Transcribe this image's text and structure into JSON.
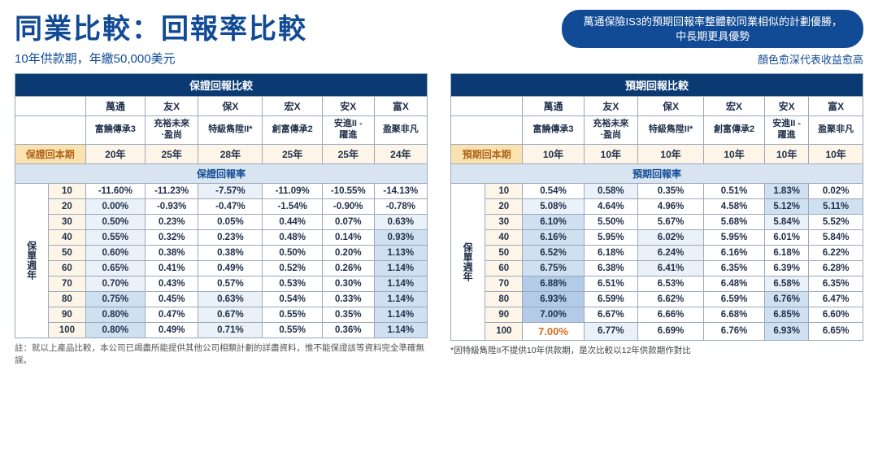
{
  "header": {
    "title": "同業比較：回報率比較",
    "banner_line1": "萬通保險IS3的預期回報率整體較同業相似的計劃優勝，",
    "banner_line2": "中長期更具優勢",
    "subtitle": "10年供款期，年繳50,000美元",
    "legend_note": "顏色愈深代表收益愈高"
  },
  "left_table": {
    "title": "保證回報比較",
    "companies": [
      "萬通",
      "友X",
      "保X",
      "宏X",
      "安X",
      "富X"
    ],
    "plans": [
      "富饒傳承3",
      "充裕未來·盈尚",
      "特級雋陞II*",
      "創富傳承2",
      "安進II - 躍進",
      "盈聚非凡"
    ],
    "period_label": "保證回本期",
    "periods": [
      "20年",
      "25年",
      "28年",
      "25年",
      "25年",
      "24年"
    ],
    "section_label": "保證回報率",
    "side_label": "保單週年",
    "years": [
      10,
      20,
      30,
      40,
      50,
      60,
      70,
      80,
      90,
      100
    ],
    "rows": [
      {
        "vals": [
          "-11.60%",
          "-11.23%",
          "-7.57%",
          "-11.09%",
          "-10.55%",
          "-14.13%"
        ],
        "shades": [
          0,
          0,
          1,
          0,
          0,
          0
        ]
      },
      {
        "vals": [
          "0.00%",
          "-0.93%",
          "-0.47%",
          "-1.54%",
          "-0.90%",
          "-0.78%"
        ],
        "shades": [
          1,
          0,
          0,
          0,
          0,
          0
        ]
      },
      {
        "vals": [
          "0.50%",
          "0.23%",
          "0.05%",
          "0.44%",
          "0.07%",
          "0.63%"
        ],
        "shades": [
          1,
          0,
          0,
          0,
          0,
          1
        ]
      },
      {
        "vals": [
          "0.55%",
          "0.32%",
          "0.23%",
          "0.48%",
          "0.14%",
          "0.93%"
        ],
        "shades": [
          1,
          0,
          0,
          0,
          0,
          2
        ]
      },
      {
        "vals": [
          "0.60%",
          "0.38%",
          "0.38%",
          "0.50%",
          "0.20%",
          "1.13%"
        ],
        "shades": [
          1,
          0,
          0,
          0,
          0,
          2
        ]
      },
      {
        "vals": [
          "0.65%",
          "0.41%",
          "0.49%",
          "0.52%",
          "0.26%",
          "1.14%"
        ],
        "shades": [
          1,
          0,
          0,
          0,
          0,
          2
        ]
      },
      {
        "vals": [
          "0.70%",
          "0.43%",
          "0.57%",
          "0.53%",
          "0.30%",
          "1.14%"
        ],
        "shades": [
          1,
          0,
          0,
          0,
          0,
          2
        ]
      },
      {
        "vals": [
          "0.75%",
          "0.45%",
          "0.63%",
          "0.54%",
          "0.33%",
          "1.14%"
        ],
        "shades": [
          2,
          0,
          1,
          0,
          0,
          2
        ]
      },
      {
        "vals": [
          "0.80%",
          "0.47%",
          "0.67%",
          "0.55%",
          "0.35%",
          "1.14%"
        ],
        "shades": [
          2,
          0,
          1,
          0,
          0,
          2
        ]
      },
      {
        "vals": [
          "0.80%",
          "0.49%",
          "0.71%",
          "0.55%",
          "0.36%",
          "1.14%"
        ],
        "shades": [
          2,
          0,
          1,
          0,
          0,
          2
        ]
      }
    ],
    "footnote": "註：就以上產品比較，本公司已竭盡所能提供其他公司相類計劃的詳盡資料，惟不能保證該等資料完全準確無誤。"
  },
  "right_table": {
    "title": "預期回報比較",
    "companies": [
      "萬通",
      "友X",
      "保X",
      "宏X",
      "安X",
      "富X"
    ],
    "plans": [
      "富饒傳承3",
      "充裕未來·盈尚",
      "特級雋陞II*",
      "創富傳承2",
      "安進II - 躍進",
      "盈聚非凡"
    ],
    "period_label": "預期回本期",
    "periods": [
      "10年",
      "10年",
      "10年",
      "10年",
      "10年",
      "10年"
    ],
    "section_label": "預期回報率",
    "side_label": "保單週年",
    "years": [
      10,
      20,
      30,
      40,
      50,
      60,
      70,
      80,
      90,
      100
    ],
    "rows": [
      {
        "vals": [
          "0.54%",
          "0.58%",
          "0.35%",
          "0.51%",
          "1.83%",
          "0.02%"
        ],
        "shades": [
          0,
          1,
          0,
          0,
          2,
          0
        ]
      },
      {
        "vals": [
          "5.08%",
          "4.64%",
          "4.96%",
          "4.58%",
          "5.12%",
          "5.11%"
        ],
        "shades": [
          1,
          0,
          0,
          0,
          2,
          2
        ]
      },
      {
        "vals": [
          "6.10%",
          "5.50%",
          "5.67%",
          "5.68%",
          "5.84%",
          "5.52%"
        ],
        "shades": [
          2,
          0,
          0,
          0,
          1,
          0
        ]
      },
      {
        "vals": [
          "6.16%",
          "5.95%",
          "6.02%",
          "5.95%",
          "6.01%",
          "5.84%"
        ],
        "shades": [
          2,
          0,
          1,
          0,
          0,
          0
        ]
      },
      {
        "vals": [
          "6.52%",
          "6.18%",
          "6.24%",
          "6.16%",
          "6.18%",
          "6.22%"
        ],
        "shades": [
          2,
          0,
          1,
          0,
          0,
          0
        ]
      },
      {
        "vals": [
          "6.75%",
          "6.38%",
          "6.41%",
          "6.35%",
          "6.39%",
          "6.28%"
        ],
        "shades": [
          2,
          0,
          1,
          0,
          0,
          0
        ]
      },
      {
        "vals": [
          "6.88%",
          "6.51%",
          "6.53%",
          "6.48%",
          "6.58%",
          "6.35%"
        ],
        "shades": [
          3,
          0,
          0,
          0,
          1,
          0
        ]
      },
      {
        "vals": [
          "6.93%",
          "6.59%",
          "6.62%",
          "6.59%",
          "6.76%",
          "6.47%"
        ],
        "shades": [
          3,
          0,
          0,
          0,
          2,
          0
        ]
      },
      {
        "vals": [
          "7.00%",
          "6.67%",
          "6.66%",
          "6.68%",
          "6.85%",
          "6.60%"
        ],
        "shades": [
          3,
          0,
          0,
          0,
          2,
          0
        ]
      },
      {
        "vals": [
          "7.00%",
          "6.77%",
          "6.69%",
          "6.76%",
          "6.93%",
          "6.65%"
        ],
        "shades": [
          0,
          1,
          0,
          0,
          2,
          0
        ],
        "highlight": 0
      }
    ],
    "footnote": "*因特級雋陞II不提供10年供款期，是次比較以12年供款期作對比"
  }
}
